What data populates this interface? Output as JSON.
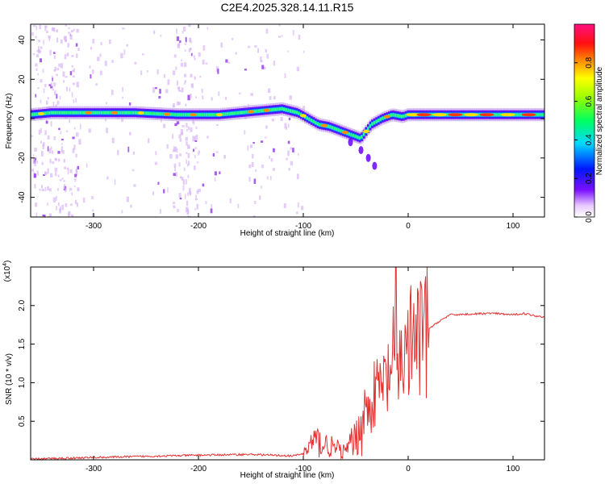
{
  "title": "C2E4.2025.328.14.11.R15",
  "colors": {
    "signal_line": "#e53030",
    "frame": "#000000",
    "spectro_bg": "#ffffff"
  },
  "chart_data": [
    {
      "type": "heatmap",
      "name": "spectrogram",
      "xlabel": "Height of straight line (km)",
      "ylabel": "Frequency (Hz)",
      "xlim": [
        -360,
        130
      ],
      "ylim": [
        -50,
        48
      ],
      "x_ticks": [
        -300,
        -200,
        -100,
        0,
        100
      ],
      "x_tick_labels": [
        "-300",
        "-200",
        "-100",
        "0",
        "100"
      ],
      "y_ticks": [
        -40,
        -20,
        0,
        20,
        40
      ],
      "y_tick_labels": [
        "-40",
        "-20",
        "0",
        "20",
        "40"
      ],
      "ridge": {
        "x": [
          -360,
          -340,
          -300,
          -260,
          -220,
          -180,
          -140,
          -120,
          -105,
          -95,
          -85,
          -75,
          -65,
          -55,
          -45,
          -35,
          -25,
          -15,
          -5,
          0,
          30,
          60,
          90,
          130
        ],
        "y": [
          2,
          3,
          3,
          3,
          2,
          2,
          4,
          5,
          3,
          0,
          -3,
          -4,
          -6,
          -8,
          -10,
          -3,
          0,
          2,
          1,
          2,
          2,
          2,
          2,
          2
        ]
      },
      "branch": {
        "x": [
          -55,
          -45,
          -38,
          -32
        ],
        "y": [
          -12,
          -16,
          -20,
          -24
        ]
      }
    },
    {
      "type": "colorbar",
      "name": "colorbar",
      "label": "Normalized spectral amplitude",
      "range": [
        0.0,
        1.0
      ],
      "ticks": [
        0.0,
        0.2,
        0.4,
        0.6,
        0.8
      ],
      "tick_labels": [
        "0.0",
        "0.2",
        "0.4",
        "0.6",
        "0.8"
      ]
    },
    {
      "type": "line",
      "name": "snr",
      "xlabel": "Height of straight line (km)",
      "ylabel": "SNR (10 * v/v)",
      "scale_label": "(x10",
      "scale_exponent": "4",
      "scale_close": ")",
      "xlim": [
        -360,
        130
      ],
      "ylim": [
        0,
        2.5
      ],
      "x_ticks": [
        -300,
        -200,
        -100,
        0,
        100
      ],
      "x_tick_labels": [
        "-300",
        "-200",
        "-100",
        "0",
        "100"
      ],
      "y_ticks": [
        0.5,
        1.0,
        1.5,
        2.0
      ],
      "y_tick_labels": [
        "0.5",
        "1.0",
        "1.5",
        "2.0"
      ],
      "series": [
        {
          "name": "SNR",
          "x": [
            -360,
            -300,
            -200,
            -150,
            -110,
            -100,
            -90,
            -80,
            -70,
            -60,
            -50,
            -40,
            -30,
            -20,
            -15,
            -10,
            -5,
            0,
            10,
            20,
            30,
            40,
            60,
            80,
            100,
            110,
            120,
            130
          ],
          "y": [
            0.01,
            0.03,
            0.06,
            0.07,
            0.05,
            0.08,
            0.25,
            0.2,
            0.15,
            0.1,
            0.3,
            0.6,
            0.9,
            1.0,
            1.3,
            1.2,
            1.35,
            1.45,
            1.55,
            1.7,
            1.8,
            1.88,
            1.89,
            1.9,
            1.88,
            1.9,
            1.87,
            1.85
          ]
        }
      ],
      "peak": {
        "x": -12,
        "y": 2.5
      }
    }
  ]
}
